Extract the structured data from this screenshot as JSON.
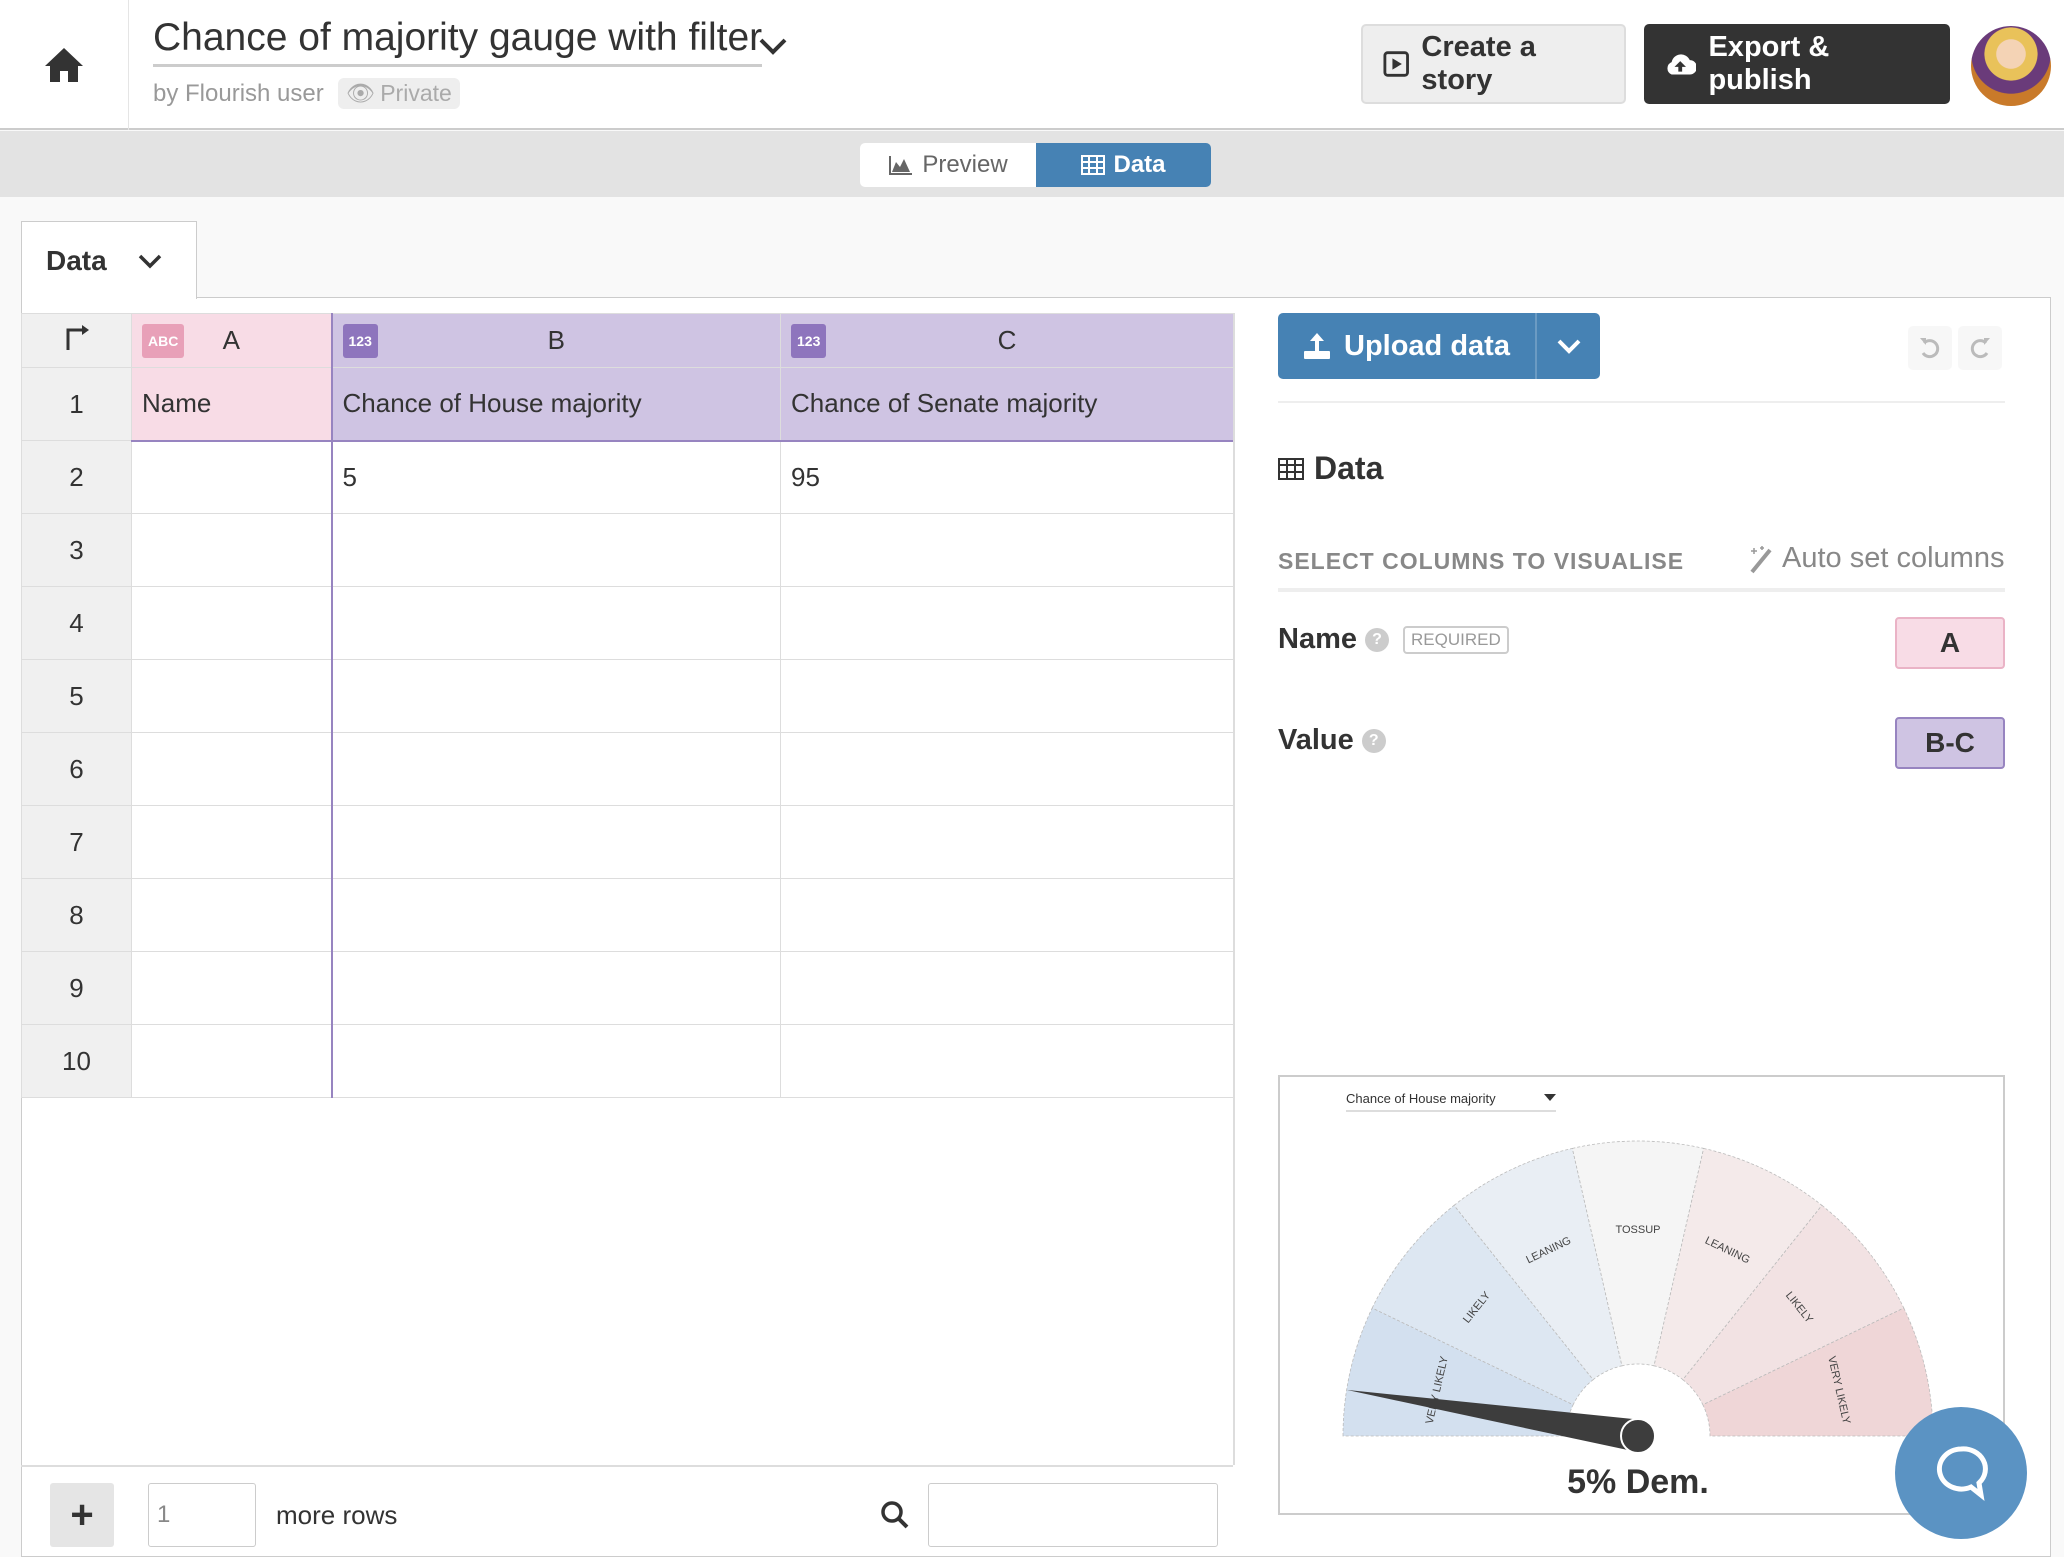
{
  "header": {
    "title": "Chance of majority gauge with filter",
    "byline": "by Flourish user",
    "privacy": "Private",
    "create_story": "Create a story",
    "export": "Export & publish"
  },
  "view_tabs": {
    "preview": "Preview",
    "data": "Data"
  },
  "sheet_tab": "Data",
  "grid": {
    "columns": [
      {
        "letter": "A",
        "type": "ABC"
      },
      {
        "letter": "B",
        "type": "123"
      },
      {
        "letter": "C",
        "type": "123"
      }
    ],
    "rows": [
      {
        "n": "1",
        "a": "Name",
        "b": "Chance of House majority",
        "c": "Chance of Senate majority"
      },
      {
        "n": "2",
        "a": "",
        "b": "5",
        "c": "95"
      },
      {
        "n": "3",
        "a": "",
        "b": "",
        "c": ""
      },
      {
        "n": "4",
        "a": "",
        "b": "",
        "c": ""
      },
      {
        "n": "5",
        "a": "",
        "b": "",
        "c": ""
      },
      {
        "n": "6",
        "a": "",
        "b": "",
        "c": ""
      },
      {
        "n": "7",
        "a": "",
        "b": "",
        "c": ""
      },
      {
        "n": "8",
        "a": "",
        "b": "",
        "c": ""
      },
      {
        "n": "9",
        "a": "",
        "b": "",
        "c": ""
      },
      {
        "n": "10",
        "a": "",
        "b": "",
        "c": ""
      }
    ],
    "more_rows_value": "1",
    "more_rows_label": "more rows"
  },
  "side": {
    "upload": "Upload data",
    "data_heading": "Data",
    "select_label": "SELECT COLUMNS TO VISUALISE",
    "auto_set": "Auto set columns",
    "name_label": "Name",
    "required": "REQUIRED",
    "name_col": "A",
    "value_label": "Value",
    "value_col": "B-C"
  },
  "gauge": {
    "filter": "Chance of House majority",
    "value": 5,
    "value_label": "5% Dem.",
    "segments": [
      {
        "label": "VERY LIKELY",
        "color": "#d3e0ef"
      },
      {
        "label": "LIKELY",
        "color": "#dde7f2"
      },
      {
        "label": "LEANING",
        "color": "#e9eef4"
      },
      {
        "label": "TOSSUP",
        "color": "#f5f5f5"
      },
      {
        "label": "LEANING",
        "color": "#f4eaea"
      },
      {
        "label": "LIKELY",
        "color": "#f2e2e3"
      },
      {
        "label": "VERY LIKELY",
        "color": "#efd6d7"
      }
    ]
  }
}
